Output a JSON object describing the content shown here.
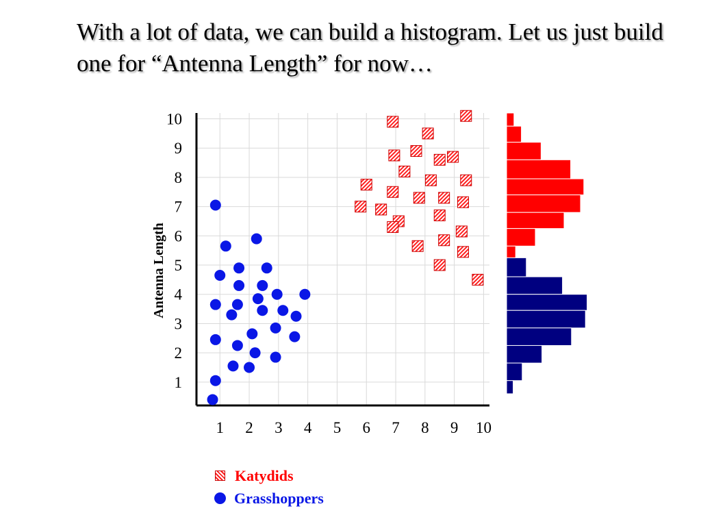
{
  "slide": {
    "title": "With a lot of data, we can build a histogram. Let us just build one for “Antenna Length” for now…"
  },
  "colors": {
    "katydid": "#ff2020",
    "grasshopper": "#0a17e6",
    "hist_red": "#ff0000",
    "hist_blue": "#000080",
    "grid": "#d9d9d9",
    "axis": "#000000"
  },
  "chart_data": {
    "type": "scatter",
    "ylabel": "Antenna  Length",
    "xlabel": "",
    "xlim": [
      0.2,
      10.2
    ],
    "ylim": [
      0.2,
      10.2
    ],
    "x_ticks": [
      "1",
      "2",
      "3",
      "4",
      "5",
      "6",
      "7",
      "8",
      "9",
      "10"
    ],
    "y_ticks": [
      "1",
      "2",
      "3",
      "4",
      "5",
      "6",
      "7",
      "8",
      "9",
      "10"
    ],
    "grid": true,
    "legend_position": "bottom",
    "series": [
      {
        "name": "Katydids",
        "marker": "hatched-square",
        "points": [
          [
            9.4,
            10.1
          ],
          [
            6.9,
            9.9
          ],
          [
            8.1,
            9.5
          ],
          [
            6.95,
            8.75
          ],
          [
            7.7,
            8.9
          ],
          [
            8.5,
            8.6
          ],
          [
            8.95,
            8.7
          ],
          [
            7.3,
            8.2
          ],
          [
            8.2,
            7.9
          ],
          [
            9.4,
            7.9
          ],
          [
            6.0,
            7.75
          ],
          [
            6.9,
            7.5
          ],
          [
            7.8,
            7.3
          ],
          [
            8.65,
            7.3
          ],
          [
            9.3,
            7.15
          ],
          [
            5.8,
            7.0
          ],
          [
            6.5,
            6.9
          ],
          [
            8.5,
            6.7
          ],
          [
            7.1,
            6.5
          ],
          [
            6.9,
            6.3
          ],
          [
            9.25,
            6.15
          ],
          [
            8.65,
            5.85
          ],
          [
            7.75,
            5.65
          ],
          [
            9.3,
            5.45
          ],
          [
            8.5,
            5.0
          ],
          [
            9.8,
            4.5
          ]
        ]
      },
      {
        "name": "Grasshoppers",
        "marker": "circle",
        "points": [
          [
            0.85,
            7.05
          ],
          [
            2.25,
            5.9
          ],
          [
            1.2,
            5.65
          ],
          [
            1.65,
            4.9
          ],
          [
            2.6,
            4.9
          ],
          [
            1.0,
            4.65
          ],
          [
            1.65,
            4.3
          ],
          [
            2.45,
            4.3
          ],
          [
            3.9,
            4.0
          ],
          [
            2.95,
            4.0
          ],
          [
            2.3,
            3.85
          ],
          [
            0.85,
            3.65
          ],
          [
            1.6,
            3.65
          ],
          [
            2.45,
            3.45
          ],
          [
            3.15,
            3.45
          ],
          [
            1.4,
            3.3
          ],
          [
            3.6,
            3.25
          ],
          [
            2.9,
            2.85
          ],
          [
            2.1,
            2.65
          ],
          [
            3.55,
            2.55
          ],
          [
            0.85,
            2.45
          ],
          [
            1.6,
            2.25
          ],
          [
            2.2,
            2.0
          ],
          [
            2.9,
            1.85
          ],
          [
            1.45,
            1.55
          ],
          [
            2.0,
            1.5
          ],
          [
            0.85,
            1.05
          ],
          [
            0.75,
            0.4
          ]
        ]
      }
    ],
    "histograms": [
      {
        "name": "Katydids",
        "bins": [
          [
            9.75,
            10.2,
            0.45
          ],
          [
            9.2,
            9.75,
            0.9
          ],
          [
            8.6,
            9.2,
            2.1
          ],
          [
            7.95,
            8.6,
            3.9
          ],
          [
            7.4,
            7.95,
            4.7
          ],
          [
            6.8,
            7.4,
            4.5
          ],
          [
            6.25,
            6.8,
            3.5
          ],
          [
            5.65,
            6.25,
            1.75
          ],
          [
            5.05,
            5.65,
            0.55
          ],
          [
            4.4,
            5.05,
            0.2
          ]
        ]
      },
      {
        "name": "Grasshoppers",
        "bins": [
          [
            4.6,
            5.25,
            1.2
          ],
          [
            4.0,
            4.6,
            3.4
          ],
          [
            3.45,
            4.0,
            4.9
          ],
          [
            2.85,
            3.45,
            4.8
          ],
          [
            2.25,
            2.85,
            3.95
          ],
          [
            1.65,
            2.25,
            2.15
          ],
          [
            1.05,
            1.65,
            0.95
          ],
          [
            0.6,
            1.05,
            0.4
          ]
        ]
      }
    ]
  }
}
